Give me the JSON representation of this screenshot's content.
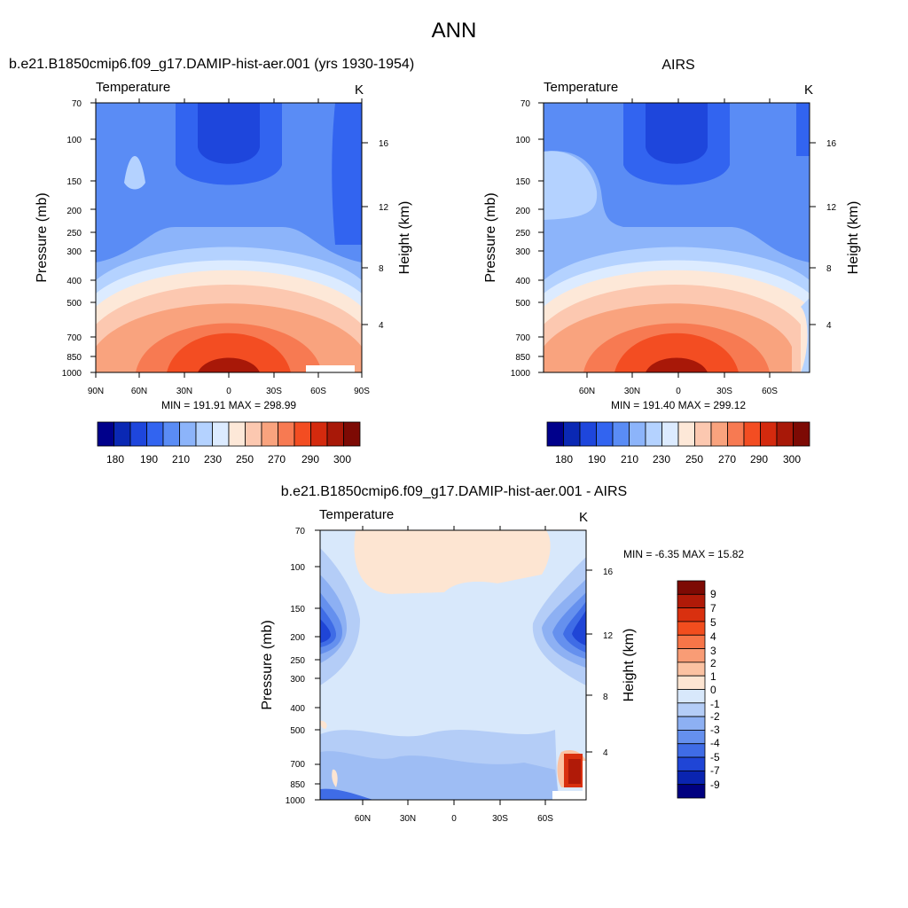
{
  "chart_data": {
    "title": "ANN",
    "panels": [
      {
        "type": "heatmap",
        "title": "b.e21.B1850cmip6.f09_g17.DAMIP-hist-aer.001 (yrs 1930-1954)",
        "variable": "Temperature",
        "units": "K",
        "ylabel": "Pressure (mb)",
        "ylabel_right": "Height (km)",
        "x_ticks": [
          "90N",
          "60N",
          "30N",
          "0",
          "30S",
          "60S",
          "90S"
        ],
        "y_ticks": [
          "70",
          "100",
          "150",
          "200",
          "250",
          "300",
          "400",
          "500",
          "700",
          "850",
          "1000"
        ],
        "height_ticks": [
          "16",
          "12",
          "8",
          "4"
        ],
        "stats": "MIN = 191.91  MAX = 298.99",
        "colorbar_labels": [
          "180",
          "190",
          "210",
          "230",
          "250",
          "270",
          "290",
          "300"
        ]
      },
      {
        "type": "heatmap",
        "title": "AIRS",
        "variable": "Temperature",
        "units": "K",
        "ylabel": "Pressure (mb)",
        "ylabel_right": "Height (km)",
        "x_ticks": [
          "60N",
          "30N",
          "0",
          "30S",
          "60S"
        ],
        "y_ticks": [
          "70",
          "100",
          "150",
          "200",
          "250",
          "300",
          "400",
          "500",
          "700",
          "850",
          "1000"
        ],
        "height_ticks": [
          "16",
          "12",
          "8",
          "4"
        ],
        "stats": "MIN = 191.40  MAX = 299.12",
        "colorbar_labels": [
          "180",
          "190",
          "210",
          "230",
          "250",
          "270",
          "290",
          "300"
        ]
      },
      {
        "type": "heatmap",
        "title": "b.e21.B1850cmip6.f09_g17.DAMIP-hist-aer.001 - AIRS",
        "variable": "Temperature",
        "units": "K",
        "ylabel": "Pressure (mb)",
        "ylabel_right": "Height (km)",
        "x_ticks": [
          "60N",
          "30N",
          "0",
          "30S",
          "60S"
        ],
        "y_ticks": [
          "70",
          "100",
          "150",
          "200",
          "250",
          "300",
          "400",
          "500",
          "700",
          "850",
          "1000"
        ],
        "height_ticks": [
          "16",
          "12",
          "8",
          "4"
        ],
        "stats": "MIN =  -6.35  MAX =  15.82",
        "colorbar_labels": [
          "9",
          "7",
          "5",
          "4",
          "3",
          "2",
          "1",
          "0",
          "-1",
          "-2",
          "-3",
          "-4",
          "-5",
          "-7",
          "-9"
        ]
      }
    ]
  },
  "colors": {
    "abs_scale": [
      "#00008b",
      "#0a28b4",
      "#1e46dc",
      "#3264f0",
      "#5a8cf5",
      "#8cb4fa",
      "#b4d2ff",
      "#dcebff",
      "#fde8d8",
      "#fcc8b0",
      "#f9a37e",
      "#f77a52",
      "#f34d22",
      "#d42a0e",
      "#a81808",
      "#7d0a04"
    ],
    "diff_scale": [
      "#7d0a04",
      "#b01a08",
      "#d9300f",
      "#f24d1e",
      "#f77548",
      "#f99c75",
      "#fbc2a2",
      "#fde5d2",
      "#d8e8fb",
      "#b4cdf7",
      "#8db0f3",
      "#6590ee",
      "#3f6ce6",
      "#1f45d6",
      "#0a24b0",
      "#000080"
    ]
  }
}
